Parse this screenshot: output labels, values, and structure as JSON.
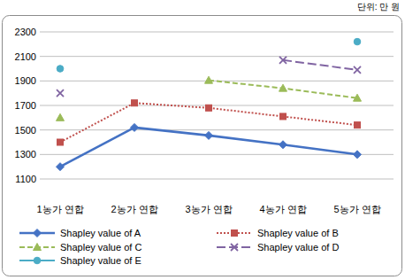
{
  "chart_data": {
    "type": "line",
    "y_label": "단위: 만 원",
    "categories": [
      "1농가 연합",
      "2농가 연합",
      "3농가 연합",
      "4농가 연합",
      "5농가 연합"
    ],
    "series": [
      {
        "name": "Shapley value of A",
        "color": "#4472c4",
        "marker": "diamond",
        "line_style": "solid",
        "values": [
          1200,
          1520,
          1455,
          1380,
          1300
        ]
      },
      {
        "name": "Shapley value of B",
        "color": "#c0504d",
        "marker": "square",
        "line_style": "dotted",
        "values": [
          1400,
          1720,
          1680,
          1610,
          1540
        ]
      },
      {
        "name": "Shapley value of C",
        "color": "#9bbb59",
        "marker": "triangle",
        "line_style": "dashed",
        "values": [
          1600,
          null,
          1905,
          1840,
          1760
        ]
      },
      {
        "name": "Shapley value of D",
        "color": "#8064a2",
        "marker": "x",
        "line_style": "longdash",
        "values": [
          1800,
          null,
          null,
          2070,
          1990
        ]
      },
      {
        "name": "Shapley value of E",
        "color": "#4bacc6",
        "marker": "circle",
        "line_style": "solid",
        "values": [
          2000,
          null,
          null,
          null,
          2220
        ]
      }
    ],
    "ylim": [
      1100,
      2300
    ],
    "yticks": [
      1100,
      1300,
      1500,
      1700,
      1900,
      2100,
      2300
    ],
    "grid": true,
    "legend": "bottom"
  }
}
